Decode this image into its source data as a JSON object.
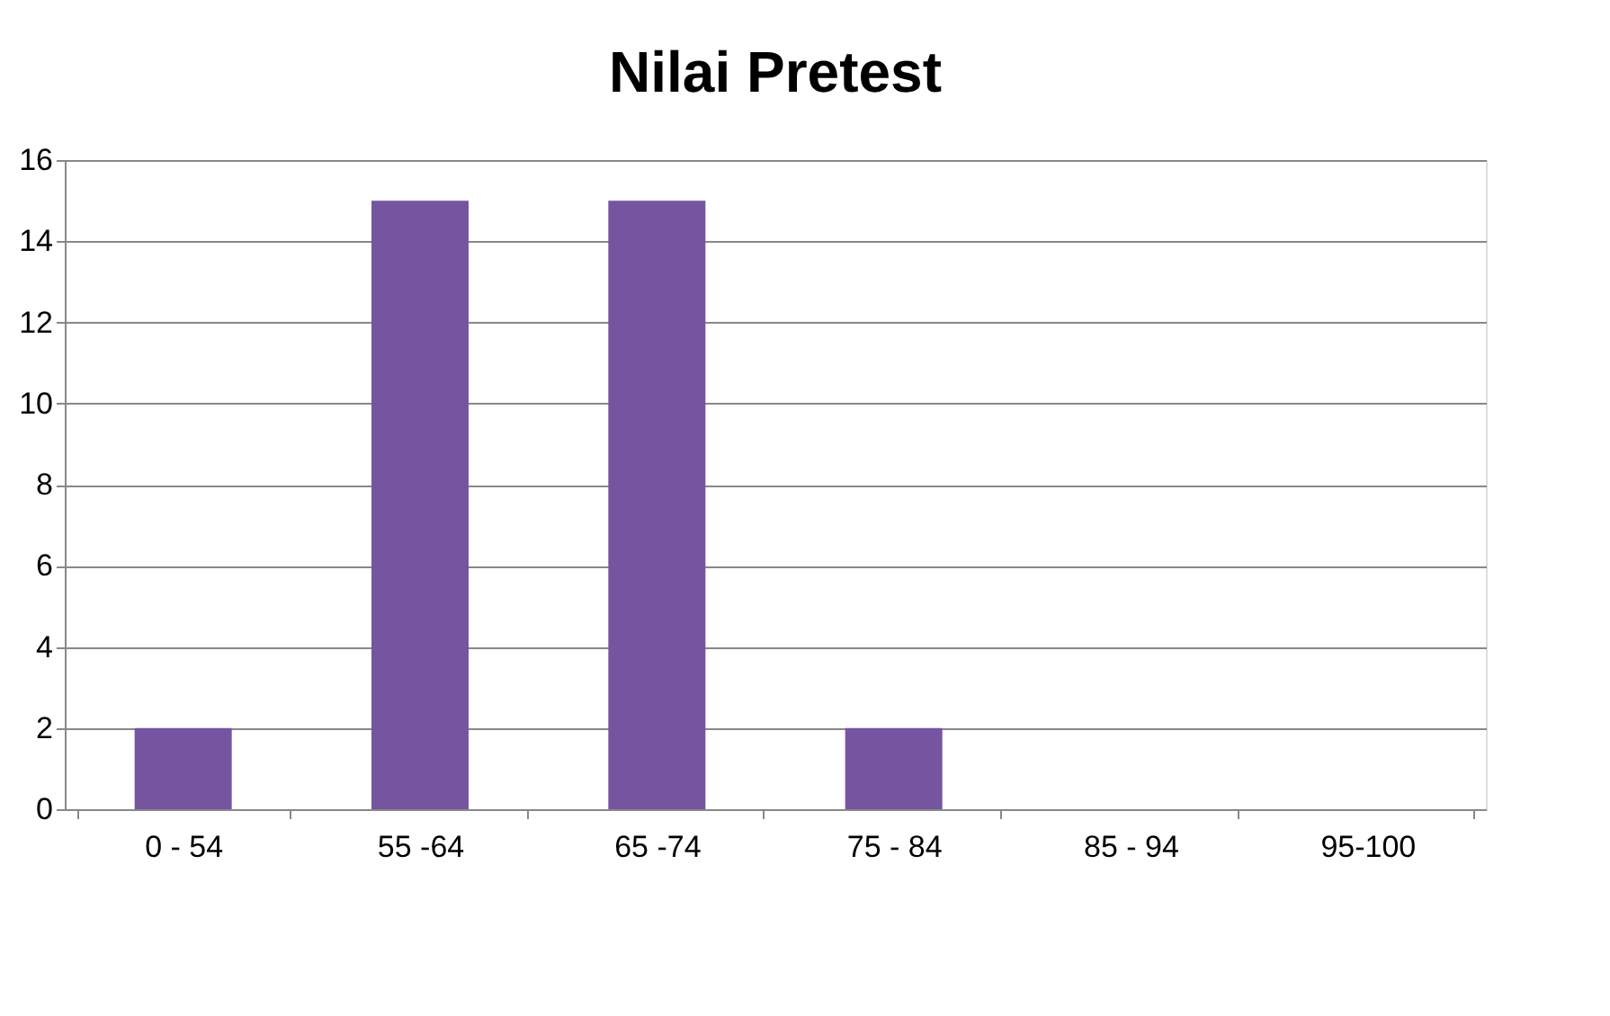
{
  "chart_data": {
    "type": "bar",
    "title": "Nilai Pretest",
    "categories": [
      "0 - 54",
      "55 -64",
      "65 -74",
      "75 - 84",
      "85 - 94",
      "95-100"
    ],
    "values": [
      2,
      15,
      15,
      2,
      0,
      0
    ],
    "color": "#7655a0",
    "ylim": [
      0,
      16
    ],
    "yticks": [
      0,
      2,
      4,
      6,
      8,
      10,
      12,
      14,
      16
    ],
    "grid": "y"
  }
}
